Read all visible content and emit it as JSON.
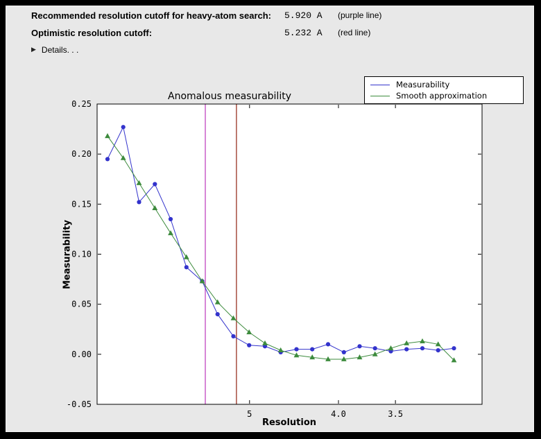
{
  "window": {
    "bg": "#e8e8e8"
  },
  "header": {
    "recommended": {
      "label": "Recommended resolution cutoff for heavy-atom search:",
      "value": "5.920 A",
      "note": "(purple line)"
    },
    "optimistic": {
      "label": "Optimistic resolution cutoff:",
      "value": "5.232 A",
      "note": "(red line)"
    },
    "details_label": "Details. . .",
    "details_icon": "right-pointing-triangle"
  },
  "chart_data": {
    "type": "line",
    "title": "Anomalous measurability",
    "xlabel": "Resolution",
    "ylabel": "Measurability",
    "ylim": [
      -0.05,
      0.25
    ],
    "ytick_labels": [
      "-0.05",
      "0.00",
      "0.05",
      "0.10",
      "0.15",
      "0.20",
      "0.25"
    ],
    "xticks": [
      {
        "label": "5",
        "pos": 0.396
      },
      {
        "label": "4.0",
        "pos": 0.627
      },
      {
        "label": "3.5",
        "pos": 0.775
      }
    ],
    "x_axis_note": "resolution in Angstrom, decreasing left to right, nonlinear spacing; x stored as fraction of plot width",
    "plot_bg": "#ffffff",
    "grid": false,
    "legend_position": "upper-right-outside",
    "series": [
      {
        "name": "Measurability",
        "color": "#3333cc",
        "marker": "circle",
        "x": [
          0.027,
          0.068,
          0.109,
          0.15,
          0.191,
          0.232,
          0.273,
          0.313,
          0.354,
          0.395,
          0.436,
          0.477,
          0.518,
          0.559,
          0.6,
          0.641,
          0.682,
          0.722,
          0.763,
          0.804,
          0.845,
          0.886,
          0.927
        ],
        "y": [
          0.195,
          0.227,
          0.152,
          0.17,
          0.135,
          0.087,
          0.073,
          0.04,
          0.018,
          0.009,
          0.008,
          0.002,
          0.005,
          0.005,
          0.01,
          0.002,
          0.008,
          0.006,
          0.003,
          0.005,
          0.006,
          0.004,
          0.006
        ]
      },
      {
        "name": "Smooth approximation",
        "color": "#3d8b3d",
        "marker": "triangle",
        "x": [
          0.027,
          0.068,
          0.109,
          0.15,
          0.191,
          0.232,
          0.273,
          0.313,
          0.354,
          0.395,
          0.436,
          0.477,
          0.518,
          0.559,
          0.6,
          0.641,
          0.682,
          0.722,
          0.763,
          0.804,
          0.845,
          0.886,
          0.927
        ],
        "y": [
          0.218,
          0.196,
          0.171,
          0.146,
          0.121,
          0.097,
          0.073,
          0.052,
          0.036,
          0.022,
          0.011,
          0.004,
          -0.001,
          -0.003,
          -0.005,
          -0.005,
          -0.003,
          0.0,
          0.006,
          0.011,
          0.013,
          0.01,
          -0.006
        ]
      }
    ],
    "vlines": [
      {
        "name": "recommended-cutoff-line",
        "color": "#c044c0",
        "pos": 0.281,
        "resolution": "5.920 A"
      },
      {
        "name": "optimistic-cutoff-line",
        "color": "#993222",
        "pos": 0.362,
        "resolution": "5.232 A"
      }
    ]
  }
}
